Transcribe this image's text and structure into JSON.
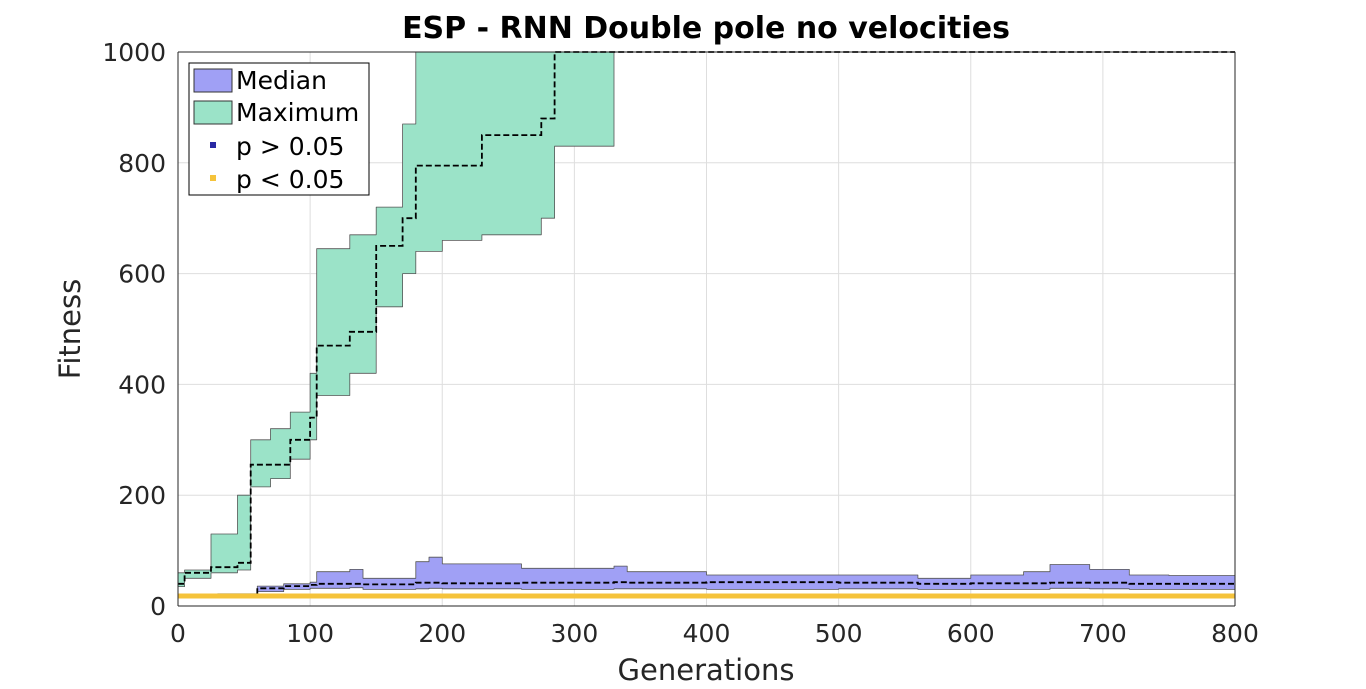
{
  "chart_data": {
    "type": "area",
    "title": "ESP - RNN Double pole no velocities",
    "xlabel": "Generations",
    "ylabel": "Fitness",
    "xlim": [
      0,
      800
    ],
    "ylim": [
      0,
      1000
    ],
    "xticks": [
      "0",
      "100",
      "200",
      "300",
      "400",
      "500",
      "600",
      "700",
      "800"
    ],
    "yticks": [
      "0",
      "200",
      "400",
      "600",
      "800",
      "1000"
    ],
    "grid": true,
    "legend_position": "top-left",
    "legend": [
      "Median",
      "Maximum",
      "p > 0.05",
      "p < 0.05"
    ],
    "colors": {
      "median_fill": "#a0a0f5",
      "maximum_fill": "#9be3c8",
      "p_greater": "#2929a3",
      "p_less": "#f5c33b",
      "band_edge": "#555555",
      "median_line": "#000000"
    },
    "series": [
      {
        "name": "Maximum",
        "x": [
          0,
          5,
          25,
          45,
          55,
          70,
          85,
          100,
          105,
          130,
          150,
          170,
          180,
          200,
          230,
          260,
          275,
          285,
          300,
          325,
          330,
          800
        ],
        "median": [
          40,
          60,
          70,
          78,
          255,
          255,
          300,
          340,
          470,
          495,
          650,
          700,
          795,
          795,
          850,
          850,
          880,
          1000,
          1000,
          1000,
          1000,
          1000
        ],
        "lower": [
          35,
          50,
          60,
          65,
          215,
          230,
          265,
          300,
          380,
          420,
          540,
          600,
          640,
          660,
          670,
          670,
          700,
          830,
          830,
          830,
          1000,
          1000
        ],
        "upper": [
          60,
          65,
          130,
          200,
          300,
          320,
          350,
          420,
          645,
          670,
          720,
          870,
          1000,
          1000,
          1000,
          1000,
          1000,
          1000,
          1000,
          1000,
          1000,
          1000
        ]
      },
      {
        "name": "Median",
        "x": [
          0,
          30,
          60,
          80,
          100,
          105,
          130,
          140,
          180,
          190,
          200,
          260,
          330,
          340,
          400,
          500,
          560,
          600,
          640,
          660,
          690,
          720,
          750,
          800
        ],
        "median": [
          18,
          18,
          32,
          36,
          38,
          40,
          40,
          39,
          42,
          42,
          41,
          42,
          43,
          42,
          43,
          42,
          40,
          41,
          41,
          42,
          42,
          40,
          40,
          42
        ],
        "lower": [
          15,
          15,
          26,
          30,
          32,
          32,
          33,
          30,
          31,
          32,
          31,
          30,
          31,
          31,
          30,
          31,
          30,
          30,
          30,
          32,
          31,
          30,
          30,
          32
        ],
        "upper": [
          20,
          22,
          36,
          40,
          43,
          62,
          66,
          50,
          80,
          88,
          76,
          68,
          72,
          62,
          56,
          56,
          50,
          56,
          62,
          75,
          66,
          56,
          55,
          62
        ]
      },
      {
        "name": "p < 0.05",
        "x": [
          0,
          800
        ],
        "y": [
          18,
          18
        ]
      }
    ]
  }
}
